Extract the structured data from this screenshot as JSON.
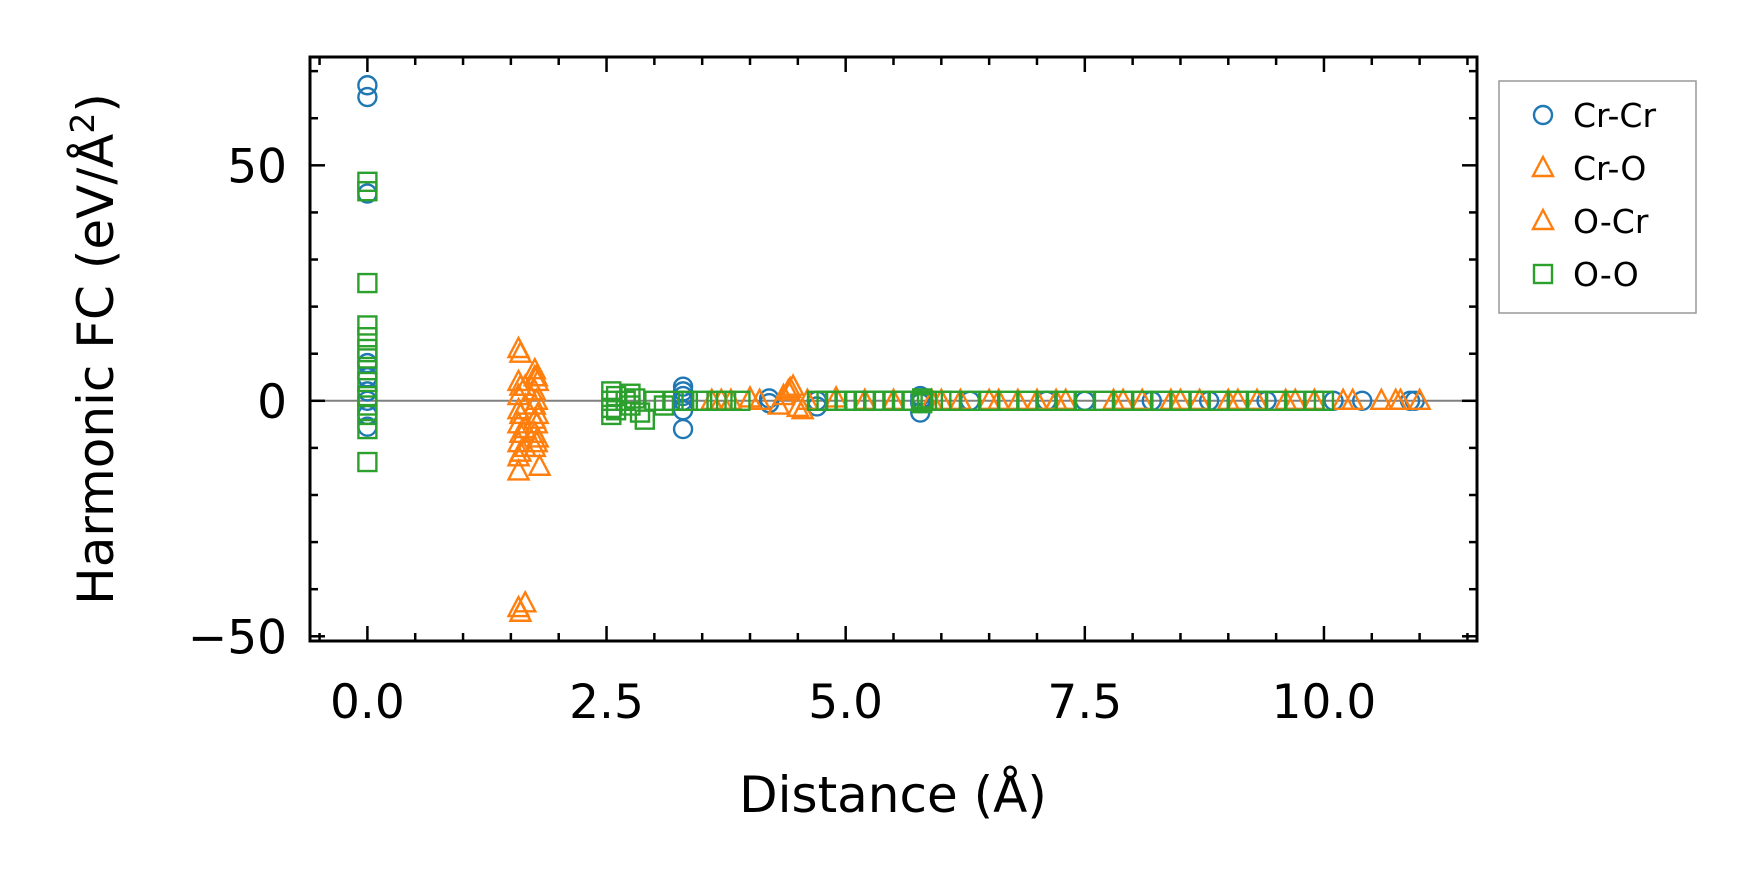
{
  "chart_data": {
    "type": "scatter",
    "title": "",
    "xlabel": "Distance (Å)",
    "ylabel_main": "Harmonic FC (eV/Å",
    "ylabel_sup": "2",
    "ylabel_close": ")",
    "xlim": [
      -0.6,
      11.6
    ],
    "ylim": [
      -51,
      73
    ],
    "xticks": [
      0.0,
      2.5,
      5.0,
      7.5,
      10.0
    ],
    "xtick_labels": [
      "0.0",
      "2.5",
      "5.0",
      "7.5",
      "10.0"
    ],
    "yticks": [
      -50,
      0,
      50
    ],
    "ytick_labels": [
      "−50",
      "0",
      "50"
    ],
    "x_minor_step": 0.5,
    "y_minor_step": 10,
    "hline_y": 0,
    "grid": false,
    "legend_position": "outside-top-right",
    "colors": {
      "blue": "#1f77b4",
      "orange": "#ff7f0e",
      "green": "#2ca02c",
      "axis": "#000000",
      "zero_line": "#808080"
    },
    "series": [
      {
        "name": "Cr-Cr",
        "marker": "circle",
        "color": "#1f77b4",
        "points": [
          [
            0,
            67
          ],
          [
            0,
            64.5
          ],
          [
            0,
            44
          ],
          [
            0,
            8
          ],
          [
            0,
            5
          ],
          [
            0,
            2
          ],
          [
            0,
            0
          ],
          [
            0,
            -3
          ],
          [
            0,
            -5.5
          ],
          [
            3.3,
            3
          ],
          [
            3.3,
            2
          ],
          [
            3.3,
            0
          ],
          [
            3.3,
            -2
          ],
          [
            3.3,
            -6
          ],
          [
            3.3,
            1
          ],
          [
            4.2,
            0.5
          ],
          [
            4.2,
            -0.5
          ],
          [
            4.7,
            0
          ],
          [
            4.7,
            -1.2
          ],
          [
            5.78,
            1
          ],
          [
            5.78,
            0
          ],
          [
            5.78,
            -2.5
          ],
          [
            5.78,
            -0.5
          ],
          [
            6.3,
            0
          ],
          [
            7.1,
            0
          ],
          [
            7.5,
            0
          ],
          [
            8.2,
            0
          ],
          [
            8.8,
            0
          ],
          [
            9.4,
            0
          ],
          [
            10.1,
            0
          ],
          [
            10.4,
            0
          ],
          [
            10.9,
            0
          ],
          [
            10.95,
            0
          ]
        ]
      },
      {
        "name": "Cr-O",
        "marker": "triangle",
        "color": "#ff7f0e",
        "points": [
          [
            1.58,
            11
          ],
          [
            1.58,
            4
          ],
          [
            1.58,
            1
          ],
          [
            1.58,
            -2
          ],
          [
            1.58,
            -5
          ],
          [
            1.58,
            -9
          ],
          [
            1.58,
            -12
          ],
          [
            1.58,
            -15
          ],
          [
            1.58,
            -44
          ],
          [
            1.65,
            3
          ],
          [
            1.65,
            -1
          ],
          [
            1.65,
            -6
          ],
          [
            1.65,
            -10
          ],
          [
            1.65,
            -43
          ],
          [
            1.75,
            6.5
          ],
          [
            1.75,
            5
          ],
          [
            1.75,
            2
          ],
          [
            1.75,
            -1
          ],
          [
            1.75,
            -4
          ],
          [
            1.75,
            -7
          ],
          [
            1.75,
            -10
          ],
          [
            1.78,
            4
          ],
          [
            1.78,
            -3
          ],
          [
            1.78,
            -8
          ],
          [
            1.8,
            -14
          ],
          [
            3.6,
            0
          ],
          [
            3.8,
            0
          ],
          [
            4.0,
            0.5
          ],
          [
            4.3,
            -1
          ],
          [
            4.4,
            2
          ],
          [
            4.45,
            3
          ],
          [
            4.5,
            -1.5
          ],
          [
            4.6,
            0
          ],
          [
            4.9,
            0.5
          ],
          [
            5.5,
            0
          ],
          [
            6.0,
            0
          ],
          [
            6.2,
            0
          ],
          [
            6.5,
            0
          ],
          [
            6.8,
            0
          ],
          [
            7.0,
            0
          ],
          [
            7.3,
            0
          ],
          [
            7.8,
            0
          ],
          [
            8.1,
            0
          ],
          [
            8.4,
            0
          ],
          [
            8.7,
            0
          ],
          [
            9.0,
            0
          ],
          [
            9.3,
            0
          ],
          [
            9.6,
            0
          ],
          [
            9.9,
            0
          ],
          [
            10.2,
            0
          ],
          [
            10.6,
            0
          ],
          [
            10.8,
            0
          ],
          [
            11.0,
            0
          ]
        ]
      },
      {
        "name": "O-Cr",
        "marker": "triangle",
        "color": "#ff7f0e",
        "points": [
          [
            1.6,
            10
          ],
          [
            1.6,
            3
          ],
          [
            1.6,
            -3
          ],
          [
            1.6,
            -7
          ],
          [
            1.6,
            -11
          ],
          [
            1.6,
            -45
          ],
          [
            1.77,
            5
          ],
          [
            1.77,
            0
          ],
          [
            1.77,
            -5
          ],
          [
            1.77,
            -9
          ],
          [
            3.7,
            0
          ],
          [
            4.1,
            0
          ],
          [
            4.35,
            1
          ],
          [
            4.42,
            2.5
          ],
          [
            4.55,
            -2
          ],
          [
            5.2,
            0
          ],
          [
            5.9,
            0
          ],
          [
            6.6,
            0
          ],
          [
            7.2,
            0
          ],
          [
            7.9,
            0
          ],
          [
            8.5,
            0
          ],
          [
            9.1,
            0
          ],
          [
            9.7,
            0
          ],
          [
            10.3,
            0
          ],
          [
            10.75,
            0
          ]
        ]
      },
      {
        "name": "O-O",
        "marker": "square",
        "color": "#2ca02c",
        "points": [
          [
            0,
            46.5
          ],
          [
            0,
            44.5
          ],
          [
            0,
            25
          ],
          [
            0,
            16
          ],
          [
            0,
            13.5
          ],
          [
            0,
            11
          ],
          [
            0,
            9
          ],
          [
            0,
            6.5
          ],
          [
            0,
            4
          ],
          [
            0,
            1
          ],
          [
            0,
            -1
          ],
          [
            0,
            -3
          ],
          [
            0,
            -6
          ],
          [
            0,
            -13
          ],
          [
            2.55,
            2
          ],
          [
            2.55,
            0
          ],
          [
            2.55,
            -1.5
          ],
          [
            2.55,
            -3
          ],
          [
            2.6,
            1
          ],
          [
            2.6,
            -2
          ],
          [
            2.7,
            0
          ],
          [
            2.75,
            1.5
          ],
          [
            2.75,
            -1
          ],
          [
            2.8,
            0.5
          ],
          [
            2.85,
            -2.5
          ],
          [
            2.9,
            -4
          ],
          [
            3.0,
            0
          ],
          [
            3.1,
            -1
          ],
          [
            3.2,
            0
          ],
          [
            3.35,
            0
          ],
          [
            3.5,
            0
          ],
          [
            3.65,
            0
          ],
          [
            3.75,
            0
          ],
          [
            3.9,
            0
          ],
          [
            4.7,
            0
          ],
          [
            4.8,
            0
          ],
          [
            4.9,
            0
          ],
          [
            5.0,
            0
          ],
          [
            5.1,
            0
          ],
          [
            5.2,
            0
          ],
          [
            5.3,
            0
          ],
          [
            5.4,
            0
          ],
          [
            5.5,
            0
          ],
          [
            5.6,
            0
          ],
          [
            5.7,
            0
          ],
          [
            5.8,
            0.5
          ],
          [
            5.8,
            -0.5
          ],
          [
            5.85,
            0
          ],
          [
            6.0,
            0
          ],
          [
            6.1,
            0
          ],
          [
            6.3,
            0
          ],
          [
            6.5,
            0
          ],
          [
            6.7,
            0
          ],
          [
            6.9,
            0
          ],
          [
            7.1,
            0
          ],
          [
            7.3,
            0
          ],
          [
            7.5,
            0
          ],
          [
            7.7,
            0
          ],
          [
            7.9,
            0
          ],
          [
            8.1,
            0
          ],
          [
            8.3,
            0
          ],
          [
            8.5,
            0
          ],
          [
            8.7,
            0
          ],
          [
            8.9,
            0
          ],
          [
            9.1,
            0
          ],
          [
            9.3,
            0
          ],
          [
            9.5,
            0
          ],
          [
            9.7,
            0
          ],
          [
            9.9,
            0
          ],
          [
            10.0,
            0
          ]
        ]
      }
    ],
    "legend": [
      {
        "label": "Cr-Cr",
        "marker": "circle",
        "color": "#1f77b4"
      },
      {
        "label": "Cr-O",
        "marker": "triangle",
        "color": "#ff7f0e"
      },
      {
        "label": "O-Cr",
        "marker": "triangle",
        "color": "#ff7f0e"
      },
      {
        "label": "O-O",
        "marker": "square",
        "color": "#2ca02c"
      }
    ]
  }
}
